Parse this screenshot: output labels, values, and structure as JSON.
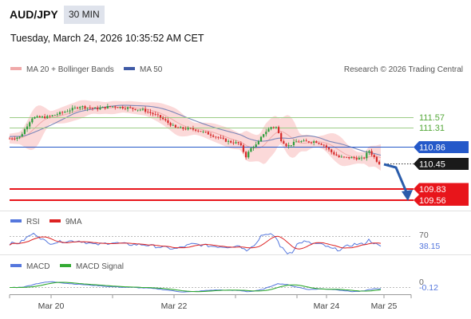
{
  "header": {
    "symbol": "AUD/JPY",
    "timeframe": "30 MIN",
    "datetime": "Tuesday, March 24, 2026 10:35:52 AM CET"
  },
  "colors": {
    "candle_up": "#2e9d3b",
    "candle_down": "#d62a2a",
    "bollinger_fill": "#fbd9d9",
    "ma20": "#f0a9a9",
    "ma50": "#7b86b8",
    "resistance": "#9ccc86",
    "pivot": "#2559c9",
    "support": "#e8151b",
    "rsi": "#5577dd",
    "rsi_ma": "#dd2222",
    "macd": "#5577dd",
    "macd_signal": "#33aa33"
  },
  "chart_data": [
    {
      "type": "candlestick",
      "name": "price",
      "legend": [
        {
          "label": "MA 20 + Bollinger Bands",
          "color": "#f0a9a9"
        },
        {
          "label": "MA 50",
          "color": "#3f5aa6"
        }
      ],
      "source": "Research © 2026 Trading Central",
      "levels": [
        {
          "value": 111.57,
          "label": "111.57",
          "kind": "resistance"
        },
        {
          "value": 111.31,
          "label": "111.31",
          "kind": "resistance"
        },
        {
          "value": 110.86,
          "label": "110.86",
          "kind": "pivot"
        },
        {
          "value": 109.83,
          "label": "109.83",
          "kind": "support"
        },
        {
          "value": 109.56,
          "label": "109.56",
          "kind": "support"
        }
      ],
      "last_price": {
        "value": 110.45,
        "label": "110.45"
      },
      "x_labels": [
        "Mar 20",
        "Mar 22",
        "Mar 24",
        "Mar 25"
      ],
      "forecast_arrow": {
        "direction": "down",
        "target": 109.83
      }
    },
    {
      "type": "line",
      "name": "rsi",
      "legend": [
        {
          "label": "RSI",
          "color": "#5577dd"
        },
        {
          "label": "9MA",
          "color": "#dd2222"
        }
      ],
      "levels": [
        {
          "value": 70,
          "label": "70"
        }
      ],
      "last_value": {
        "value": 38.15,
        "label": "38.15"
      }
    },
    {
      "type": "line",
      "name": "macd",
      "legend": [
        {
          "label": "MACD",
          "color": "#5577dd"
        },
        {
          "label": "MACD Signal",
          "color": "#33aa33"
        }
      ],
      "levels": [
        {
          "value": 0,
          "label": "0"
        }
      ],
      "last_value": {
        "value": -0.12,
        "label": "-0.12"
      }
    }
  ]
}
